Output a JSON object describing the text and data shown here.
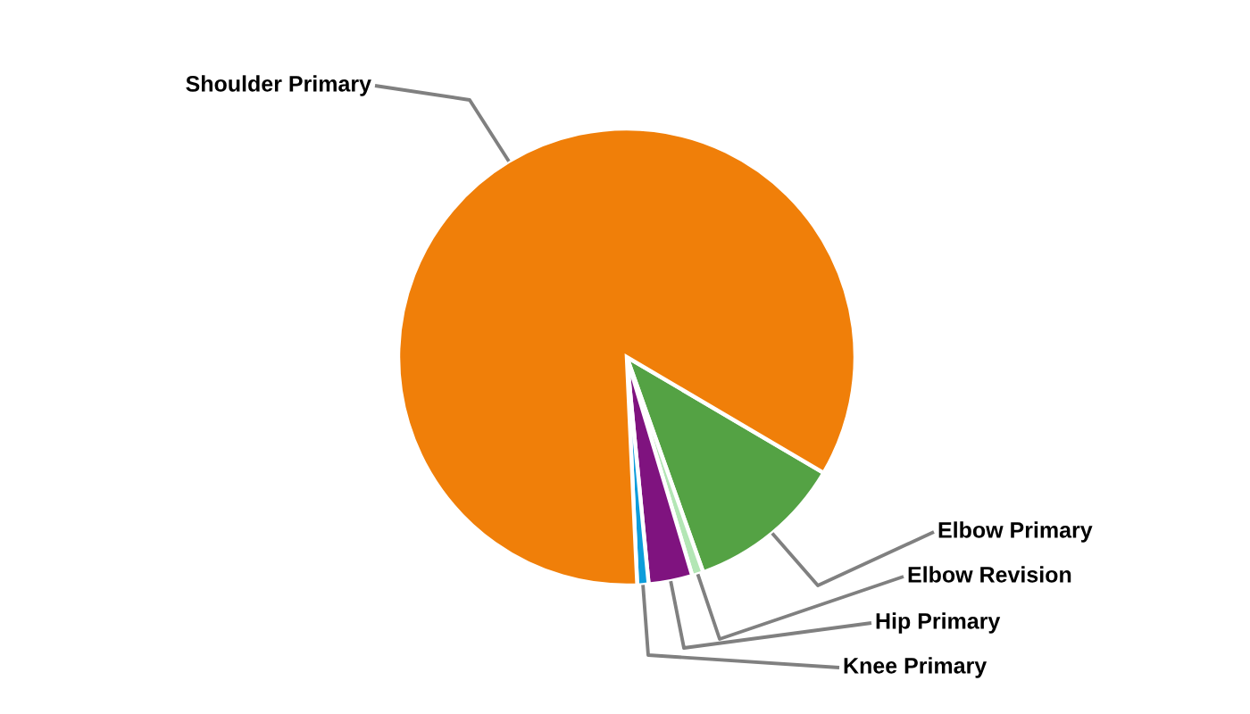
{
  "chart_data": {
    "type": "pie",
    "categories": [
      "Elbow Primary",
      "Elbow Revision",
      "Hip Primary",
      "Knee Primary",
      "Shoulder Primary"
    ],
    "values": [
      11.1,
      0.8,
      3.1,
      0.8,
      84.2
    ],
    "colors": [
      "#54a244",
      "#b3e6b5",
      "#7f137f",
      "#0d9ddb",
      "#f07f09"
    ]
  }
}
